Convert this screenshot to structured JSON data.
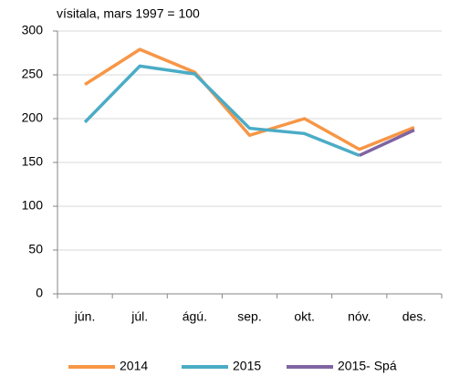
{
  "chart_data": {
    "type": "line",
    "title": "vísitala, mars 1997 = 100",
    "categories": [
      "jún.",
      "júl.",
      "ágú.",
      "sep.",
      "okt.",
      "nóv.",
      "des."
    ],
    "series": [
      {
        "name": "2014",
        "color": "#f79646",
        "values": [
          239,
          279,
          253,
          181,
          200,
          165,
          190
        ]
      },
      {
        "name": "2015",
        "color": "#4bacc6",
        "values": [
          196,
          260,
          251,
          189,
          183,
          158,
          null
        ]
      },
      {
        "name": "2015- Spá",
        "color": "#8064a2",
        "values": [
          null,
          null,
          null,
          null,
          null,
          158,
          187
        ]
      }
    ],
    "ylim": [
      0,
      300
    ],
    "yticks": [
      0,
      50,
      100,
      150,
      200,
      250,
      300
    ],
    "grid": true,
    "legend": "bottom"
  }
}
